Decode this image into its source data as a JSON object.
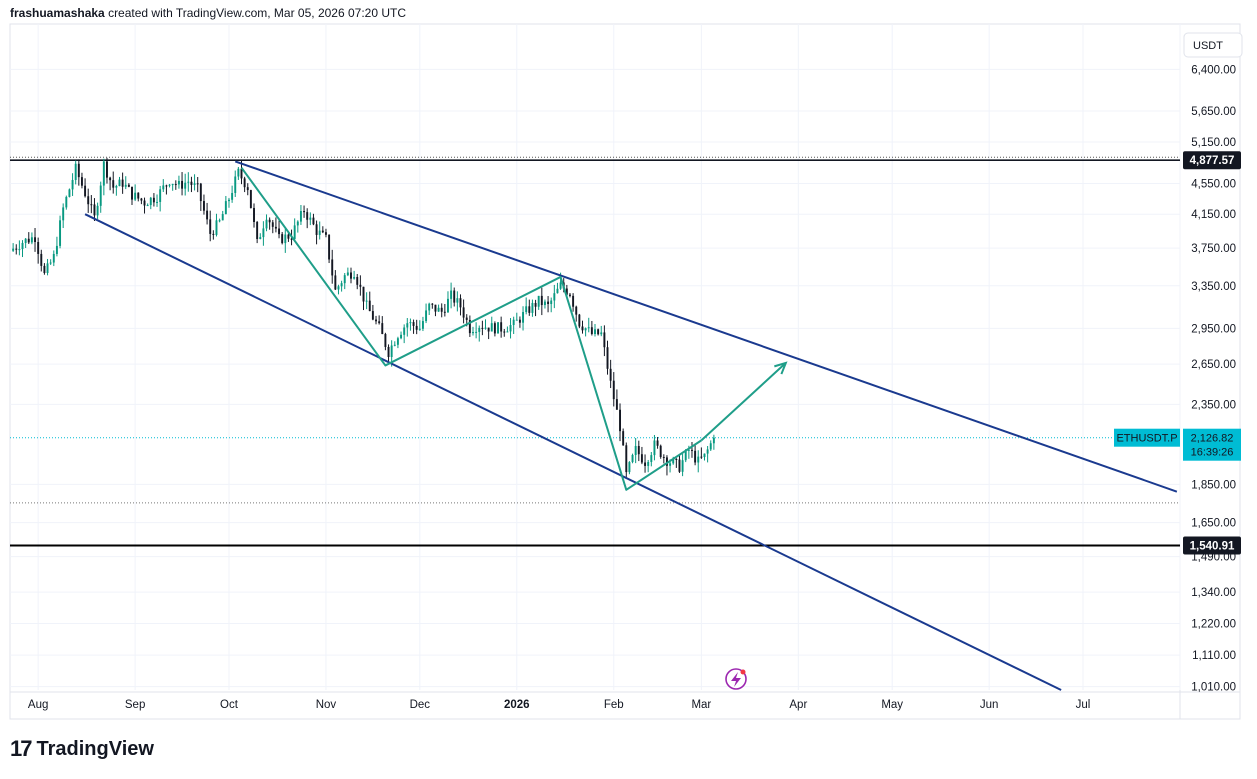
{
  "header": {
    "author": "frashuamashaka",
    "attribution": "created with TradingView.com, Mar 05, 2026 07:20 UTC"
  },
  "footer": {
    "logo_mark": "17",
    "logo_text": "TradingView"
  },
  "colors": {
    "up": "#089981",
    "down": "#131722",
    "channel": "#1a3a8f",
    "wave": "#1f9e89",
    "current": "#00bcd4"
  },
  "chart_data": {
    "type": "candlestick",
    "symbol": "ETHUSDT.P",
    "currency": "USDT",
    "scale": "log",
    "ylim": [
      1000,
      7200
    ],
    "y_ticks": [
      "6,400.00",
      "5,650.00",
      "5,150.00",
      "4,550.00",
      "4,150.00",
      "3,750.00",
      "3,350.00",
      "2,950.00",
      "2,650.00",
      "2,350.00",
      "1,850.00",
      "1,650.00",
      "1,490.00",
      "1,340.00",
      "1,220.00",
      "1,110.00",
      "1,010.00"
    ],
    "x_ticks": [
      "Aug",
      "Sep",
      "Oct",
      "Nov",
      "Dec",
      "2026",
      "Feb",
      "Mar",
      "Apr",
      "May",
      "Jun",
      "Jul"
    ],
    "x_range": [
      "2025-07-23",
      "2026-08-01"
    ],
    "current_price": {
      "label": "2,126.82",
      "countdown": "16:39:26",
      "value": 2126.82
    },
    "levels": [
      {
        "label": "4,877.57",
        "value": 4877.57
      },
      {
        "label": "1,540.91",
        "value": 1540.91
      }
    ],
    "dotted_low": 1750,
    "channel_lines": [
      {
        "from": [
          "2025-10-03",
          4860
        ],
        "to": [
          "2026-07-31",
          1810
        ]
      },
      {
        "from": [
          "2025-08-16",
          4150
        ],
        "to": [
          "2026-06-24",
          1000
        ]
      }
    ],
    "wave_path": [
      [
        "2025-10-05",
        4770
      ],
      [
        "2025-11-20",
        2640
      ],
      [
        "2026-01-15",
        3440
      ],
      [
        "2026-02-05",
        1820
      ],
      [
        "2026-03-01",
        2110
      ]
    ],
    "arrow": {
      "from": [
        "2026-03-01",
        2110
      ],
      "to": [
        "2026-03-28",
        2660
      ]
    },
    "close_path": [
      [
        "2025-07-23",
        3720
      ],
      [
        "2025-07-27",
        3820
      ],
      [
        "2025-07-31",
        3880
      ],
      [
        "2025-08-03",
        3460
      ],
      [
        "2025-08-06",
        3650
      ],
      [
        "2025-08-09",
        4220
      ],
      [
        "2025-08-13",
        4750
      ],
      [
        "2025-08-16",
        4420
      ],
      [
        "2025-08-19",
        4100
      ],
      [
        "2025-08-22",
        4820
      ],
      [
        "2025-08-25",
        4500
      ],
      [
        "2025-08-28",
        4560
      ],
      [
        "2025-08-31",
        4400
      ],
      [
        "2025-09-04",
        4300
      ],
      [
        "2025-09-08",
        4380
      ],
      [
        "2025-09-12",
        4600
      ],
      [
        "2025-09-15",
        4520
      ],
      [
        "2025-09-18",
        4580
      ],
      [
        "2025-09-21",
        4470
      ],
      [
        "2025-09-25",
        3920
      ],
      [
        "2025-09-28",
        4050
      ],
      [
        "2025-10-01",
        4350
      ],
      [
        "2025-10-04",
        4700
      ],
      [
        "2025-10-07",
        4500
      ],
      [
        "2025-10-10",
        3800
      ],
      [
        "2025-10-13",
        4150
      ],
      [
        "2025-10-17",
        3850
      ],
      [
        "2025-10-21",
        3900
      ],
      [
        "2025-10-25",
        4200
      ],
      [
        "2025-10-29",
        3950
      ],
      [
        "2025-11-01",
        3850
      ],
      [
        "2025-11-04",
        3300
      ],
      [
        "2025-11-07",
        3450
      ],
      [
        "2025-11-10",
        3500
      ],
      [
        "2025-11-14",
        3150
      ],
      [
        "2025-11-18",
        2950
      ],
      [
        "2025-11-21",
        2750
      ],
      [
        "2025-11-24",
        2900
      ],
      [
        "2025-11-27",
        3000
      ],
      [
        "2025-12-01",
        2950
      ],
      [
        "2025-12-04",
        3150
      ],
      [
        "2025-12-08",
        3100
      ],
      [
        "2025-12-11",
        3250
      ],
      [
        "2025-12-14",
        3150
      ],
      [
        "2025-12-17",
        2950
      ],
      [
        "2025-12-20",
        2980
      ],
      [
        "2025-12-23",
        2960
      ],
      [
        "2025-12-27",
        2950
      ],
      [
        "2025-12-31",
        2980
      ],
      [
        "2026-01-04",
        3100
      ],
      [
        "2026-01-08",
        3200
      ],
      [
        "2026-01-11",
        3150
      ],
      [
        "2026-01-15",
        3350
      ],
      [
        "2026-01-18",
        3280
      ],
      [
        "2026-01-21",
        3000
      ],
      [
        "2026-01-25",
        2900
      ],
      [
        "2026-01-28",
        2900
      ],
      [
        "2026-01-31",
        2500
      ],
      [
        "2026-02-03",
        2200
      ],
      [
        "2026-02-05",
        1900
      ],
      [
        "2026-02-08",
        2050
      ],
      [
        "2026-02-11",
        1980
      ],
      [
        "2026-02-14",
        2080
      ],
      [
        "2026-02-18",
        1990
      ],
      [
        "2026-02-22",
        1950
      ],
      [
        "2026-02-25",
        2050
      ],
      [
        "2026-02-28",
        1980
      ],
      [
        "2026-03-02",
        2010
      ],
      [
        "2026-03-05",
        2126
      ]
    ]
  }
}
